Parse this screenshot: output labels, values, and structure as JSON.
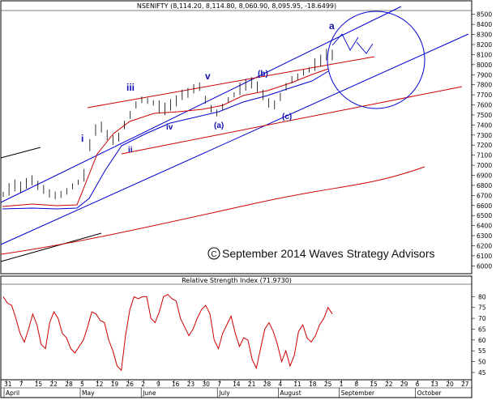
{
  "chart_data": [
    {
      "type": "line",
      "title": "NSENIFTY (8,114.20, 8,114.80, 8,060.90, 8,095.95, -18.6499)",
      "ylim": [
        5930,
        8530
      ],
      "y_ticks": [
        6000,
        6100,
        6200,
        6300,
        6400,
        6500,
        6600,
        6700,
        6800,
        6900,
        7000,
        7100,
        7200,
        7300,
        7400,
        7500,
        7600,
        7700,
        7800,
        7900,
        8000,
        8100,
        8200,
        8300,
        8400,
        8500
      ],
      "x_tick_labels": [
        "31",
        "7",
        "15",
        "22",
        "28",
        "5",
        "12",
        "19",
        "26",
        "2",
        "9",
        "16",
        "23",
        "30",
        "7",
        "14",
        "21",
        "28",
        "4",
        "11",
        "18",
        "25",
        "1",
        "8",
        "15",
        "22",
        "29",
        "6",
        "13",
        "20",
        "27"
      ],
      "month_labels": [
        "April",
        "May",
        "June",
        "July",
        "August",
        "September",
        "October"
      ],
      "wave_labels": [
        "i",
        "ii",
        "iii",
        "iv",
        "v",
        "(a)",
        "(b)",
        "(c)",
        "a"
      ],
      "series": [
        {
          "name": "",
          "values": [
            6710,
            6760,
            6800,
            6780,
            6820,
            6850,
            6800,
            6760,
            6720,
            6700,
            6710,
            6740,
            6790,
            6830,
            6900,
            7200,
            7350,
            7380,
            7300,
            7250,
            7280,
            7400,
            7500,
            7600,
            7650,
            7640,
            7620,
            7580,
            7560,
            7600,
            7640,
            7700,
            7720,
            7760,
            7780,
            7650,
            7560,
            7520,
            7580,
            7650,
            7700,
            7760,
            7800,
            7820,
            7780,
            7700,
            7620,
            7600,
            7680,
            7780,
            7850,
            7880,
            7920,
            7950,
            8000,
            8040,
            8100,
            8096
          ]
        }
      ],
      "colors": {
        "price": "#000000",
        "ma_short": "#cc0000",
        "ma_mid": "#0000cc",
        "ma_long": "#cc0000",
        "channel": "#0000cc",
        "resistance": "#cc0000"
      },
      "watermark": "September 2014 Waves Strategy Advisors"
    },
    {
      "type": "line",
      "title": "Relative Strength Index (71.9730)",
      "ylim": [
        42,
        85
      ],
      "y_ticks": [
        45,
        50,
        55,
        60,
        65,
        70,
        75,
        80
      ],
      "series": [
        {
          "name": "",
          "values": [
            80,
            77,
            76,
            70,
            63,
            59,
            65,
            72,
            67,
            58,
            56,
            68,
            73,
            70,
            63,
            61,
            56,
            54,
            57,
            60,
            66,
            73,
            72,
            69,
            68,
            60,
            55,
            48,
            46,
            62,
            74,
            80,
            79,
            80,
            80,
            70,
            68,
            73,
            80,
            81,
            79,
            78,
            70,
            66,
            62,
            65,
            70,
            74,
            76,
            72,
            60,
            56,
            63,
            67,
            71,
            63,
            57,
            61,
            60,
            51,
            47,
            56,
            65,
            68,
            64,
            58,
            50,
            55,
            48,
            53,
            64,
            67,
            61,
            59,
            62,
            67,
            70,
            75,
            72
          ]
        }
      ],
      "colors": {
        "line": "#cc0000"
      }
    }
  ]
}
